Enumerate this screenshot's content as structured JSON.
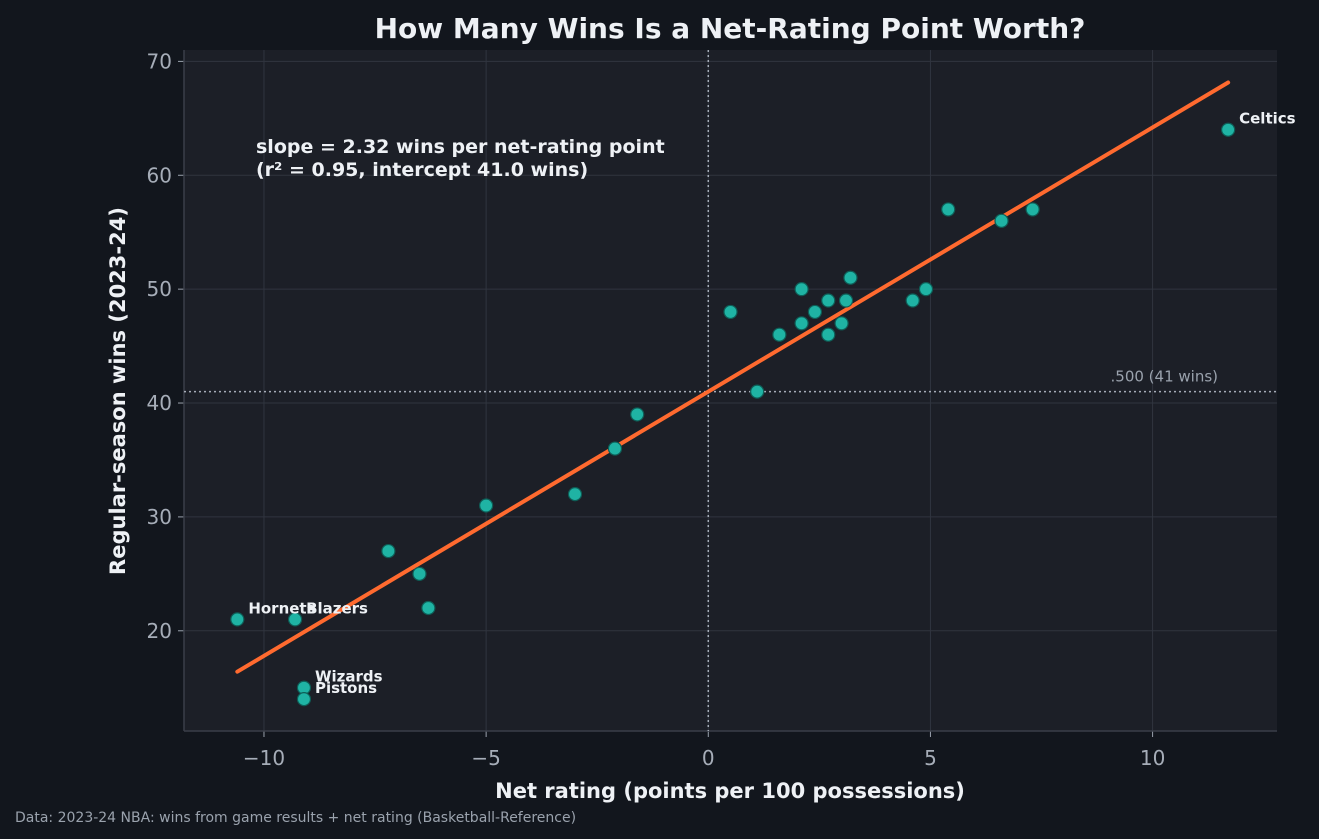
{
  "colors": {
    "background": "#12161d",
    "plot_background": "#1c1f27",
    "grid": "#30353f",
    "points": "#1fb3a4",
    "point_edge": "#0e5e57",
    "fit_line": "#ff6a2f",
    "reference_lines": "#a6adb8",
    "text": "#eef1f5",
    "muted_text": "#9aa2ad"
  },
  "chart_data": {
    "type": "scatter",
    "title": "How Many Wins Is a Net-Rating Point Worth?",
    "xlabel": "Net rating (points per 100 possessions)",
    "ylabel": "Regular-season wins (2023-24)",
    "xlim": [
      -11.8,
      12.8
    ],
    "ylim": [
      11.2,
      71
    ],
    "xticks": [
      -10,
      -5,
      0,
      5,
      10
    ],
    "xtick_labels": [
      "−10",
      "−5",
      "0",
      "5",
      "10"
    ],
    "yticks": [
      20,
      30,
      40,
      50,
      60,
      70
    ],
    "ytick_labels": [
      "20",
      "30",
      "40",
      "50",
      "60",
      "70"
    ],
    "grid": true,
    "points": [
      {
        "x": 11.7,
        "y": 64,
        "label": "Celtics"
      },
      {
        "x": 7.3,
        "y": 57,
        "label": ""
      },
      {
        "x": 5.4,
        "y": 57,
        "label": ""
      },
      {
        "x": 6.6,
        "y": 56,
        "label": ""
      },
      {
        "x": 3.2,
        "y": 51,
        "label": ""
      },
      {
        "x": 2.1,
        "y": 50,
        "label": ""
      },
      {
        "x": 4.9,
        "y": 50,
        "label": ""
      },
      {
        "x": 2.7,
        "y": 49,
        "label": ""
      },
      {
        "x": 3.1,
        "y": 49,
        "label": ""
      },
      {
        "x": 4.6,
        "y": 49,
        "label": ""
      },
      {
        "x": 0.5,
        "y": 48,
        "label": ""
      },
      {
        "x": 2.4,
        "y": 48,
        "label": ""
      },
      {
        "x": 2.1,
        "y": 47,
        "label": ""
      },
      {
        "x": 3.0,
        "y": 47,
        "label": ""
      },
      {
        "x": 1.6,
        "y": 46,
        "label": ""
      },
      {
        "x": 2.7,
        "y": 46,
        "label": ""
      },
      {
        "x": 1.1,
        "y": 41,
        "label": ""
      },
      {
        "x": -1.6,
        "y": 39,
        "label": ""
      },
      {
        "x": -2.1,
        "y": 36,
        "label": ""
      },
      {
        "x": -3.0,
        "y": 32,
        "label": ""
      },
      {
        "x": -5.0,
        "y": 31,
        "label": ""
      },
      {
        "x": -7.2,
        "y": 27,
        "label": ""
      },
      {
        "x": -6.5,
        "y": 25,
        "label": ""
      },
      {
        "x": -6.3,
        "y": 22,
        "label": ""
      },
      {
        "x": -10.6,
        "y": 21,
        "label": "Hornets"
      },
      {
        "x": -9.3,
        "y": 21,
        "label": "Blazers"
      },
      {
        "x": -9.1,
        "y": 15,
        "label": "Wizards"
      },
      {
        "x": -9.1,
        "y": 14,
        "label": "Pistons"
      }
    ],
    "fit_line": {
      "slope": 2.32,
      "intercept": 41.0,
      "x_range": [
        -10.6,
        11.7
      ]
    },
    "reference_lines": {
      "x": 0,
      "y": 41,
      "y_label": ".500 (41 wins)"
    },
    "annotation": {
      "line1": "slope = 2.32 wins per net-rating point",
      "line2": "(r² = 0.95, intercept 41.0 wins)"
    }
  },
  "source_note": "Data: 2023-24 NBA: wins from game results + net rating (Basketball-Reference)"
}
